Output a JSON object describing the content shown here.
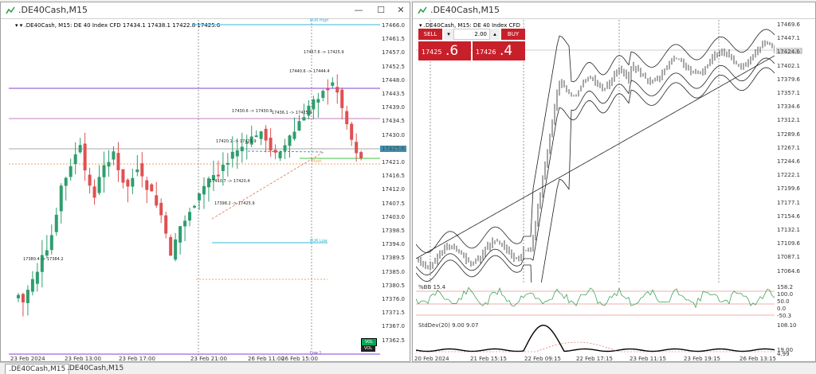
{
  "left_window": {
    "title": ".DE40Cash,M15",
    "symbol_line": ".DE40Cash, M15:  DE 40 Index CFD  17434.1 17438.1 17422.8 17425.6",
    "current_price": "17425.6",
    "y_ticks": [
      "17466.0",
      "17461.5",
      "17457.0",
      "17452.5",
      "17448.0",
      "17443.5",
      "17439.0",
      "17434.5",
      "17430.0",
      "17425.6",
      "17421.0",
      "17416.5",
      "17412.0",
      "17407.5",
      "17403.0",
      "17398.5",
      "17394.0",
      "17389.5",
      "17385.0",
      "17380.5",
      "17376.0",
      "17371.5",
      "17367.0",
      "17362.5"
    ],
    "x_ticks": [
      "23 Feb 2024",
      "23 Feb 13:00",
      "23 Feb 17:00",
      "23 Feb 21:00",
      "26 Feb 11:00",
      "26 Feb 15:00"
    ],
    "annotations": [
      "17398.2 -> 17425.9",
      "17410.7 -> 17420.4",
      "17420.1 -> 17425.9",
      "17430.6 -> 17430.9",
      "17436.1 -> 17425.9",
      "17440.6 -> 17444.4",
      "17457.6 -> 17425.9",
      "17380.4 -> 17384.2"
    ],
    "lines": [
      {
        "label": "EUR High",
        "color": "#35b8d8"
      },
      {
        "label": "EUR Low",
        "color": "#35b8d8"
      },
      {
        "label": "Pivot",
        "color": "#e8a050"
      },
      {
        "label": "Low 1",
        "color": "#8040d0"
      }
    ],
    "badges": [
      "VOL",
      "VOL"
    ]
  },
  "right_window": {
    "title": ".DE40Cash,M15",
    "symbol_line": ".DE40Cash, M15:  DE 40 Index CFD",
    "sell_label": "SELL",
    "buy_label": "BUY",
    "lot": "2.00",
    "bid_small": "17425",
    "bid_big": ".6",
    "ask_small": "17426",
    "ask_big": ".4",
    "current_price": "17425.6",
    "y_ticks": [
      "17469.6",
      "17447.1",
      "17424.6",
      "17402.1",
      "17379.6",
      "17357.1",
      "17334.6",
      "17312.1",
      "17289.6",
      "17267.1",
      "17244.6",
      "17222.1",
      "17199.6",
      "17177.1",
      "17154.6",
      "17132.1",
      "17109.6",
      "17087.1",
      "17064.6"
    ],
    "x_ticks": [
      "20 Feb 2024",
      "21 Feb 15:15",
      "22 Feb 09:15",
      "22 Feb 17:15",
      "23 Feb 11:15",
      "23 Feb 19:15",
      "26 Feb 13:15"
    ],
    "bb_label": "%BB 15.4",
    "bb_ticks": [
      "158.2",
      "100.0",
      "50.0",
      "0.0",
      "-50.3"
    ],
    "std_label": "StdDev(20) 9.00 9.07",
    "std_ticks": [
      "108.10",
      "19.00",
      "4.99"
    ]
  },
  "tabs": [
    ".DE40Cash,M15",
    ".DE40Cash,M15"
  ],
  "colors": {
    "sell": "#c8202a",
    "bull": "#2e9e6e",
    "bear": "#e05050"
  }
}
